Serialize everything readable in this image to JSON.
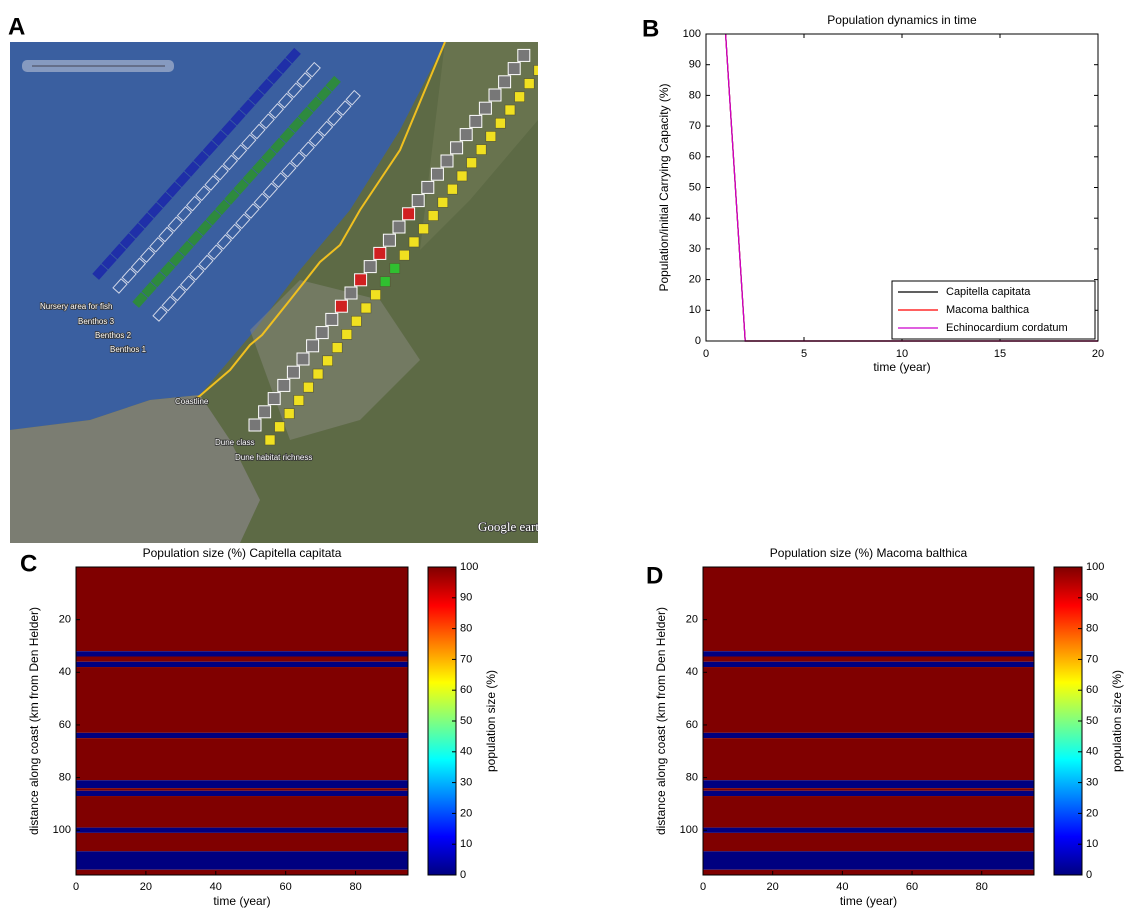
{
  "map": {
    "panel_label": "A",
    "labels": [
      "Nursery area for fish",
      "Benthos 3",
      "Benthos 2",
      "Benthos 1",
      "Coastline",
      "Dune class",
      "Dune habitat richness",
      "Google earth"
    ]
  },
  "chart_data": [
    {
      "type": "line",
      "panel_label": "B",
      "title": "Population dynamics in time",
      "x_label": "time (year)",
      "y_label": "Population/initial Carrying Capacity (%)",
      "x": [
        1,
        2,
        3,
        4,
        5,
        6,
        7,
        8,
        9,
        10,
        11,
        12,
        13,
        14,
        15,
        16,
        17,
        18,
        19,
        20
      ],
      "series": [
        {
          "name": "Capitella capitata",
          "color": "#000000",
          "values": [
            100,
            0,
            0,
            0,
            0,
            0,
            0,
            0,
            0,
            0,
            0,
            0,
            0,
            0,
            0,
            0,
            0,
            0,
            0,
            0
          ]
        },
        {
          "name": "Macoma balthica",
          "color": "#ff0000",
          "values": [
            100,
            0,
            0,
            0,
            0,
            0,
            0,
            0,
            0,
            0,
            0,
            0,
            0,
            0,
            0,
            0,
            0,
            0,
            0,
            0
          ]
        },
        {
          "name": "Echinocardium cordatum",
          "color": "#cc00cc",
          "values": [
            100,
            0,
            0,
            0,
            0,
            0,
            0,
            0,
            0,
            0,
            0,
            0,
            0,
            0,
            0,
            0,
            0,
            0,
            0,
            0
          ]
        }
      ],
      "xlim": [
        0,
        20
      ],
      "xticks": [
        0,
        5,
        10,
        15,
        20
      ],
      "ylim": [
        0,
        100
      ],
      "yticks": [
        0,
        10,
        20,
        30,
        40,
        50,
        60,
        70,
        80,
        90,
        100
      ],
      "legend": "lower right"
    },
    {
      "type": "heatmap",
      "panel_label": "C",
      "title": "Population size (%) Capitella capitata",
      "x_label": "time (year)",
      "y_label": "distance along coast (km from Den Helder)",
      "xlim": [
        0,
        95
      ],
      "xticks": [
        0,
        20,
        40,
        60,
        80
      ],
      "ylim": [
        0,
        117
      ],
      "yticks": [
        20,
        40,
        60,
        80,
        100
      ],
      "y_reversed": true,
      "y_edges": [
        0,
        32,
        34,
        36,
        38,
        63,
        65,
        81,
        84,
        85,
        87,
        99,
        101,
        108,
        115,
        117
      ],
      "values": [
        100,
        0,
        100,
        0,
        100,
        0,
        100,
        0,
        100,
        0,
        100,
        0,
        100,
        0,
        100
      ],
      "colormap": "jet",
      "clim": [
        0,
        100
      ],
      "cticks": [
        0,
        10,
        20,
        30,
        40,
        50,
        60,
        70,
        80,
        90,
        100
      ],
      "colorbar_label": "population size (%)"
    },
    {
      "type": "heatmap",
      "panel_label": "D",
      "title": "Population size (%) Macoma balthica",
      "x_label": "time (year)",
      "y_label": "distance along coast (km from Den Helder)",
      "xlim": [
        0,
        95
      ],
      "xticks": [
        0,
        20,
        40,
        60,
        80
      ],
      "ylim": [
        0,
        117
      ],
      "yticks": [
        20,
        40,
        60,
        80,
        100
      ],
      "y_reversed": true,
      "y_edges": [
        0,
        32,
        34,
        36,
        38,
        63,
        65,
        81,
        84,
        85,
        87,
        99,
        101,
        108,
        115,
        117
      ],
      "values": [
        100,
        0,
        100,
        0,
        100,
        0,
        100,
        0,
        100,
        0,
        100,
        0,
        100,
        0,
        100
      ],
      "colormap": "jet",
      "clim": [
        0,
        100
      ],
      "cticks": [
        0,
        10,
        20,
        30,
        40,
        50,
        60,
        70,
        80,
        90,
        100
      ],
      "colorbar_label": "population size (%)"
    }
  ]
}
